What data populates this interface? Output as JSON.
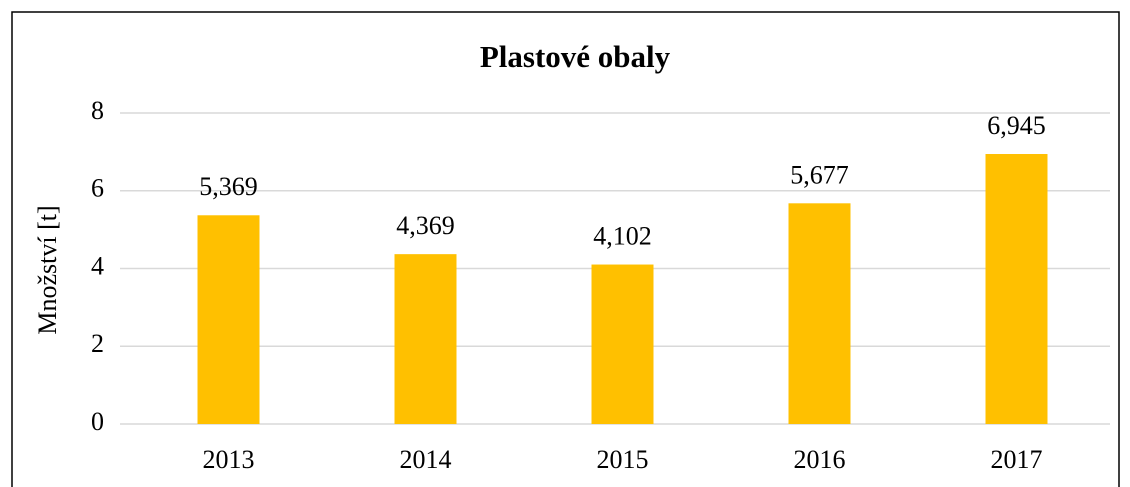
{
  "chart_data": {
    "type": "bar",
    "title": "Plastové obaly",
    "y_label": "Množství [t]",
    "categories": [
      "2013",
      "2014",
      "2015",
      "2016",
      "2017"
    ],
    "values": [
      5.369,
      4.369,
      4.102,
      5.677,
      6.945
    ],
    "value_labels": [
      "5,369",
      "4,369",
      "4,102",
      "5,677",
      "6,945"
    ],
    "color": "#ffc000",
    "ylim": [
      0,
      8
    ],
    "yticks": [
      0,
      2,
      4,
      6,
      8
    ],
    "grid": true
  }
}
